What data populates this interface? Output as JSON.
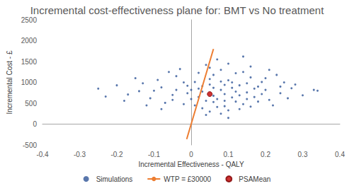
{
  "chart_data": {
    "type": "scatter",
    "title": "Incremental cost-effectiveness plane for: BMT vs No treatment",
    "x_label": "Incremental Effectiveness - QALY",
    "y_label": "Incremental Cost - £",
    "xlim": [
      -0.4,
      0.4
    ],
    "xticks": [
      -0.4,
      -0.3,
      -0.2,
      -0.1,
      0,
      0.1,
      0.2,
      0.3,
      0.4
    ],
    "ylim": [
      -500,
      2500
    ],
    "yticks": [
      -500,
      0,
      500,
      1000,
      1500,
      2000,
      2500
    ],
    "grid": false,
    "legend": "bottom",
    "series": [
      {
        "name": "Simulations",
        "type": "scatter",
        "color": "#2f5597",
        "marker": "circle",
        "x": [
          0.02,
          0.08,
          -0.05,
          0.12,
          0.05,
          0.15,
          -0.02,
          0.1,
          0.0,
          0.07,
          0.18,
          -0.08,
          0.03,
          0.13,
          0.06,
          -0.11,
          0.21,
          0.09,
          0.01,
          0.16,
          -0.04,
          0.11,
          0.04,
          0.24,
          -0.14,
          0.14,
          0.08,
          -0.01,
          0.19,
          0.05,
          0.27,
          -0.17,
          0.12,
          0.03,
          0.22,
          -0.07,
          0.17,
          0.1,
          -0.03,
          0.06,
          0.3,
          -0.2,
          0.15,
          0.02,
          0.09,
          -0.09,
          0.25,
          0.07,
          -0.12,
          0.2,
          0.04,
          0.13,
          -0.06,
          0.16,
          0.0,
          0.11,
          -0.15,
          0.23,
          0.05,
          0.08,
          0.33,
          -0.23,
          0.01,
          0.18,
          0.14,
          -0.1,
          0.06,
          0.26,
          0.09,
          -0.02,
          0.12,
          0.03,
          0.17,
          -0.05,
          0.21,
          0.1,
          0.07,
          -0.13,
          0.28,
          0.15,
          0.04,
          -0.18,
          0.19,
          0.02,
          0.11,
          -0.08,
          0.24,
          0.06,
          0.13,
          -0.01,
          0.08,
          0.16,
          0.34,
          -0.25,
          0.05,
          0.1,
          0.2,
          -0.04,
          0.09,
          0.14
        ],
        "values": [
          650,
          820,
          700,
          540,
          950,
          760,
          480,
          1050,
          820,
          600,
          900,
          880,
          380,
          690,
          1180,
          620,
          580,
          430,
          1010,
          1120,
          1150,
          870,
          560,
          740,
          790,
          480,
          1300,
          920,
          1010,
          300,
          860,
          710,
          1220,
          780,
          450,
          510,
          650,
          330,
          1320,
          870,
          690,
          930,
          980,
          1230,
          720,
          1060,
          1000,
          410,
          450,
          820,
          1420,
          360,
          1250,
          1380,
          600,
          640,
          1100,
          1180,
          1080,
          250,
          820,
          660,
          450,
          540,
          1250,
          800,
          680,
          620,
          940,
          1000,
          780,
          910,
          850,
          580,
          1300,
          1450,
          1550,
          980,
          950,
          600,
          220,
          560,
          720,
          850,
          1000,
          360,
          900,
          530,
          930,
          740,
          1020,
          420,
          800,
          850,
          1350,
          150,
          1100,
          820,
          560,
          1620
        ]
      },
      {
        "name": "WTP = £30000",
        "type": "line",
        "color": "#ed7d31",
        "line_style": "solid",
        "x": [
          -0.012,
          0.06
        ],
        "values": [
          -360,
          1800
        ]
      },
      {
        "name": "PSAMean",
        "type": "scatter",
        "color": "#c00000",
        "marker": "circle",
        "x": [
          0.05
        ],
        "values": [
          720
        ]
      }
    ]
  }
}
